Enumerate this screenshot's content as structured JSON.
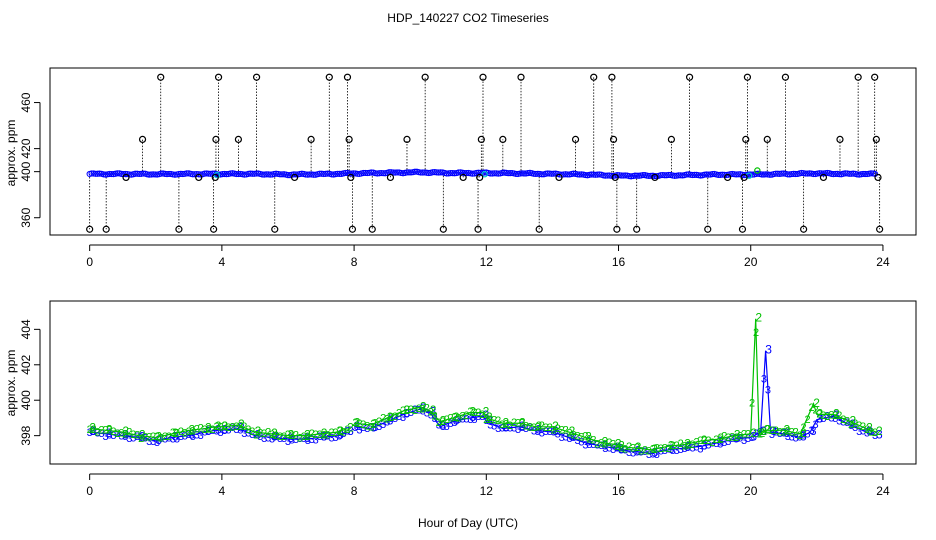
{
  "title": "HDP_140227  CO2 Timeseries",
  "xlabel": "Hour of Day (UTC)",
  "colors": {
    "black": "#000000",
    "blue": "#0000ff",
    "green": "#00c000",
    "cyan": "#00cccc"
  },
  "chart_data": [
    {
      "type": "scatter",
      "ylabel": "approx. ppm",
      "xlim": [
        -1.2,
        25
      ],
      "ylim": [
        345,
        490
      ],
      "xticks": [
        0,
        4,
        8,
        12,
        16,
        20,
        24
      ],
      "yticks": [
        360,
        400,
        420,
        460
      ],
      "ytick_labels": [
        "360",
        "400",
        "420",
        "460"
      ],
      "baseline_x": [
        0,
        1,
        2,
        3,
        4,
        5,
        6,
        7,
        8,
        9,
        10,
        11,
        12,
        13,
        14,
        15,
        16,
        17,
        18,
        19,
        20,
        21,
        22,
        23,
        23.8
      ],
      "baseline_y": [
        398,
        398,
        397.8,
        398,
        398,
        398,
        397.5,
        397.8,
        398.5,
        399,
        399.5,
        398.8,
        398.8,
        398.5,
        398,
        397.5,
        396.5,
        396.5,
        397,
        397.5,
        397.5,
        398,
        398.5,
        398,
        398
      ],
      "outliers": [
        {
          "x": 0.0,
          "y": 350
        },
        {
          "x": 0.5,
          "y": 350
        },
        {
          "x": 1.1,
          "y": 395
        },
        {
          "x": 1.6,
          "y": 428
        },
        {
          "x": 2.15,
          "y": 482
        },
        {
          "x": 2.7,
          "y": 350
        },
        {
          "x": 3.3,
          "y": 395
        },
        {
          "x": 3.75,
          "y": 350
        },
        {
          "x": 3.8,
          "y": 395
        },
        {
          "x": 3.82,
          "y": 428
        },
        {
          "x": 3.9,
          "y": 482
        },
        {
          "x": 4.5,
          "y": 428
        },
        {
          "x": 5.05,
          "y": 482
        },
        {
          "x": 5.6,
          "y": 350
        },
        {
          "x": 6.2,
          "y": 395
        },
        {
          "x": 6.7,
          "y": 428
        },
        {
          "x": 7.25,
          "y": 482
        },
        {
          "x": 7.8,
          "y": 482
        },
        {
          "x": 7.85,
          "y": 428
        },
        {
          "x": 7.9,
          "y": 395
        },
        {
          "x": 7.95,
          "y": 350
        },
        {
          "x": 8.55,
          "y": 350
        },
        {
          "x": 9.1,
          "y": 395
        },
        {
          "x": 9.6,
          "y": 428
        },
        {
          "x": 10.15,
          "y": 482
        },
        {
          "x": 10.7,
          "y": 350
        },
        {
          "x": 11.3,
          "y": 395
        },
        {
          "x": 11.75,
          "y": 350
        },
        {
          "x": 11.8,
          "y": 395
        },
        {
          "x": 11.85,
          "y": 428
        },
        {
          "x": 11.9,
          "y": 482
        },
        {
          "x": 12.5,
          "y": 428
        },
        {
          "x": 13.05,
          "y": 482
        },
        {
          "x": 13.6,
          "y": 350
        },
        {
          "x": 14.2,
          "y": 395
        },
        {
          "x": 14.7,
          "y": 428
        },
        {
          "x": 15.25,
          "y": 482
        },
        {
          "x": 15.8,
          "y": 482
        },
        {
          "x": 15.85,
          "y": 428
        },
        {
          "x": 15.9,
          "y": 395
        },
        {
          "x": 15.95,
          "y": 350
        },
        {
          "x": 16.55,
          "y": 350
        },
        {
          "x": 17.1,
          "y": 395
        },
        {
          "x": 17.6,
          "y": 428
        },
        {
          "x": 18.15,
          "y": 482
        },
        {
          "x": 18.7,
          "y": 350
        },
        {
          "x": 19.3,
          "y": 395
        },
        {
          "x": 19.75,
          "y": 350
        },
        {
          "x": 19.8,
          "y": 395
        },
        {
          "x": 19.85,
          "y": 428
        },
        {
          "x": 19.9,
          "y": 482
        },
        {
          "x": 20.5,
          "y": 428
        },
        {
          "x": 21.05,
          "y": 482
        },
        {
          "x": 21.6,
          "y": 350
        },
        {
          "x": 22.2,
          "y": 395
        },
        {
          "x": 22.7,
          "y": 428
        },
        {
          "x": 23.25,
          "y": 482
        },
        {
          "x": 23.75,
          "y": 482
        },
        {
          "x": 23.8,
          "y": 428
        },
        {
          "x": 23.85,
          "y": 395
        },
        {
          "x": 23.9,
          "y": 350
        }
      ]
    },
    {
      "type": "line",
      "ylabel": "approx. ppm",
      "xlim": [
        -1.2,
        25
      ],
      "ylim": [
        396.4,
        405.6
      ],
      "xticks": [
        0,
        4,
        8,
        12,
        16,
        20,
        24
      ],
      "yticks": [
        398,
        400,
        402,
        404
      ],
      "series": [
        {
          "label": "3",
          "x": [
            0,
            0.5,
            1,
            1.5,
            2,
            2.5,
            3,
            3.5,
            3.8,
            4,
            4.5,
            5,
            5.5,
            6,
            6.5,
            7,
            7.5,
            7.8,
            8,
            8.5,
            9,
            9.5,
            10,
            10.3,
            10.6,
            11,
            11.5,
            11.9,
            12,
            12.5,
            13,
            13.5,
            14,
            14.5,
            15,
            15.5,
            15.9,
            16,
            16.5,
            17,
            17.5,
            18,
            18.5,
            19,
            19.5,
            20,
            20.3,
            20.45,
            20.6,
            21,
            21.5,
            21.8,
            22,
            22.5,
            23,
            23.5,
            23.8
          ],
          "y": [
            398.2,
            398.1,
            398.0,
            397.9,
            397.7,
            397.9,
            398.0,
            398.2,
            398.3,
            398.3,
            398.4,
            398.0,
            397.9,
            397.8,
            397.8,
            397.9,
            398.0,
            398.2,
            398.5,
            398.4,
            398.8,
            399.2,
            399.5,
            399.3,
            398.5,
            398.8,
            399.0,
            399.1,
            398.8,
            398.4,
            398.5,
            398.3,
            398.2,
            397.9,
            397.6,
            397.4,
            397.3,
            397.2,
            397.1,
            397.0,
            397.2,
            397.3,
            397.4,
            397.6,
            397.8,
            397.9,
            398.2,
            402.8,
            398.2,
            398.1,
            397.9,
            398.2,
            398.9,
            399.1,
            398.6,
            398.2,
            398.0
          ]
        },
        {
          "label": "2",
          "x": [
            0,
            0.5,
            1,
            1.5,
            2,
            2.5,
            3,
            3.5,
            3.8,
            4,
            4.5,
            5,
            5.5,
            6,
            6.5,
            7,
            7.5,
            7.8,
            8,
            8.5,
            9,
            9.5,
            10,
            10.3,
            10.6,
            11,
            11.5,
            11.9,
            12,
            12.5,
            13,
            13.5,
            14,
            14.5,
            15,
            15.5,
            15.9,
            16,
            16.5,
            17,
            17.5,
            18,
            18.5,
            19,
            19.5,
            20,
            20.15,
            20.25,
            20.4,
            21,
            21.5,
            21.9,
            22,
            22.5,
            23,
            23.5,
            23.8
          ],
          "y": [
            398.4,
            398.3,
            398.2,
            398.0,
            397.9,
            398.1,
            398.3,
            398.4,
            398.5,
            398.5,
            398.6,
            398.2,
            398.1,
            398.0,
            398.0,
            398.1,
            398.2,
            398.4,
            398.7,
            398.6,
            399.0,
            399.4,
            399.6,
            399.4,
            398.8,
            399.0,
            399.3,
            399.3,
            399.0,
            398.7,
            398.7,
            398.5,
            398.5,
            398.2,
            397.9,
            397.6,
            397.5,
            397.4,
            397.3,
            397.2,
            397.4,
            397.5,
            397.7,
            397.8,
            398.0,
            398.1,
            404.6,
            398.1,
            398.3,
            398.3,
            398.1,
            399.8,
            399.2,
            399.2,
            398.8,
            398.4,
            398.2
          ]
        }
      ]
    }
  ]
}
